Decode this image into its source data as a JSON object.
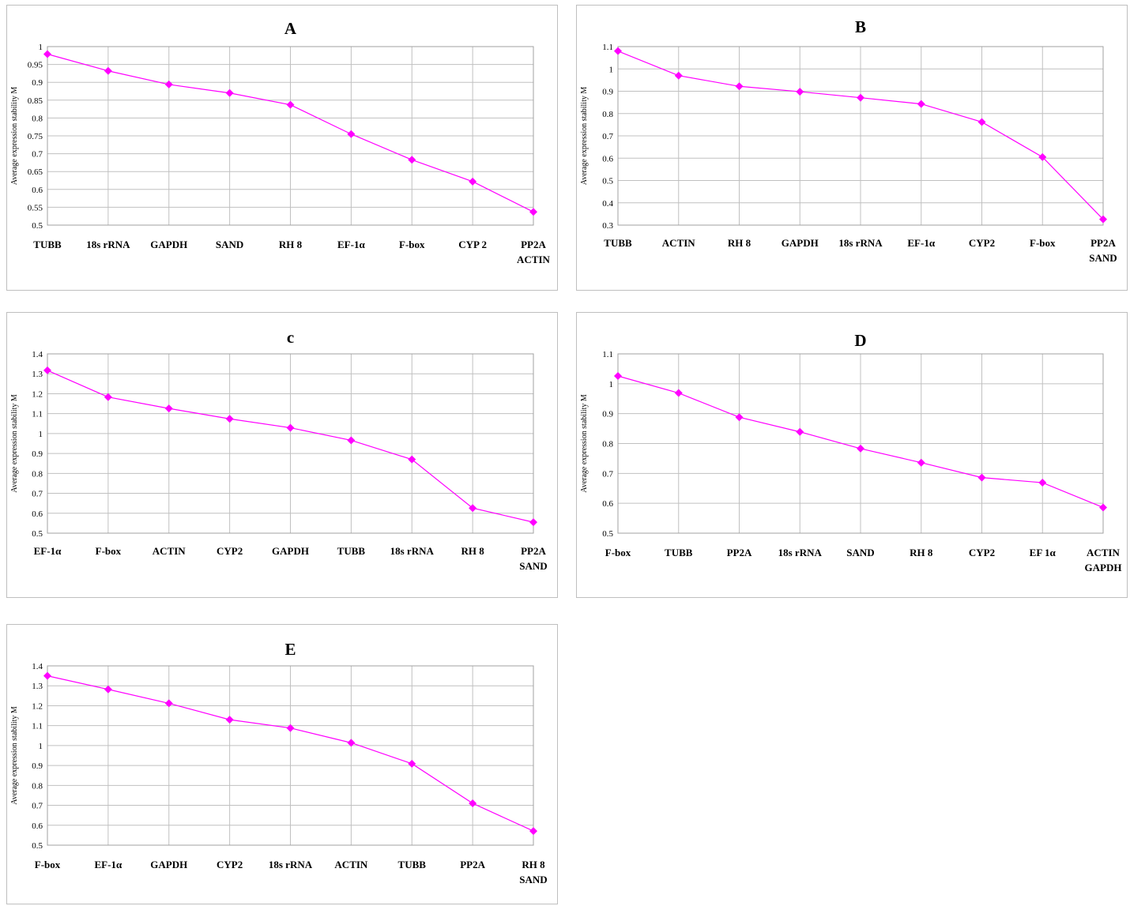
{
  "chart_data": [
    {
      "type": "line",
      "title": "A",
      "ylabel": "Average expression stability M",
      "xlabel": "",
      "categories": [
        "TUBB",
        "18s rRNA",
        "GAPDH",
        "SAND",
        "RH 8",
        "EF-1α",
        "F-box",
        "CYP 2",
        "PP2A\nACTIN"
      ],
      "values": [
        0.979,
        0.932,
        0.894,
        0.87,
        0.837,
        0.755,
        0.683,
        0.622,
        0.537
      ],
      "ylim": [
        0.5,
        1
      ],
      "yticks": [
        "0.5",
        "0.55",
        "0.6",
        "0.65",
        "0.7",
        "0.75",
        "0.8",
        "0.85",
        "0.9",
        "0.95",
        "1"
      ],
      "grid": true,
      "legend": "none",
      "color": "#ff00ff"
    },
    {
      "type": "line",
      "title": "B",
      "ylabel": "Average expression stability M",
      "xlabel": "",
      "categories": [
        "TUBB",
        "ACTIN",
        "RH 8",
        "GAPDH",
        "18s rRNA",
        "EF-1α",
        "CYP2",
        "F-box",
        "PP2A\nSAND"
      ],
      "values": [
        1.08,
        0.97,
        0.922,
        0.898,
        0.871,
        0.843,
        0.762,
        0.605,
        0.326
      ],
      "ylim": [
        0.3,
        1.1
      ],
      "yticks": [
        "0.3",
        "0.4",
        "0.5",
        "0.6",
        "0.7",
        "0.8",
        "0.9",
        "1",
        "1.1"
      ],
      "grid": true,
      "legend": "none",
      "color": "#ff00ff"
    },
    {
      "type": "line",
      "title": "c",
      "ylabel": "Average expression stability M",
      "xlabel": "",
      "categories": [
        "EF-1α",
        "F-box",
        "ACTIN",
        "CYP2",
        "GAPDH",
        "TUBB",
        "18s rRNA",
        "RH 8",
        "PP2A\nSAND"
      ],
      "values": [
        1.317,
        1.183,
        1.126,
        1.074,
        1.029,
        0.966,
        0.87,
        0.626,
        0.555
      ],
      "ylim": [
        0.5,
        1.4
      ],
      "yticks": [
        "0.5",
        "0.6",
        "0.7",
        "0.8",
        "0.9",
        "1",
        "1.1",
        "1.2",
        "1.3",
        "1.4"
      ],
      "grid": true,
      "legend": "none",
      "color": "#ff00ff"
    },
    {
      "type": "line",
      "title": "D",
      "ylabel": "Average expression stability M",
      "xlabel": "",
      "categories": [
        "F-box",
        "TUBB",
        "PP2A",
        "18s rRNA",
        "SAND",
        "RH 8",
        "CYP2",
        "EF 1α",
        "ACTIN\nGAPDH"
      ],
      "values": [
        1.026,
        0.969,
        0.888,
        0.839,
        0.783,
        0.736,
        0.686,
        0.669,
        0.586
      ],
      "ylim": [
        0.5,
        1.1
      ],
      "yticks": [
        "0.5",
        "0.6",
        "0.7",
        "0.8",
        "0.9",
        "1",
        "1.1"
      ],
      "grid": true,
      "legend": "none",
      "color": "#ff00ff"
    },
    {
      "type": "line",
      "title": "E",
      "ylabel": "Average expression stability M",
      "xlabel": "",
      "categories": [
        "F-box",
        "EF-1α",
        "GAPDH",
        "CYP2",
        "18s rRNA",
        "ACTIN",
        "TUBB",
        "PP2A",
        "RH 8\nSAND"
      ],
      "values": [
        1.35,
        1.282,
        1.212,
        1.13,
        1.088,
        1.014,
        0.909,
        0.71,
        0.571
      ],
      "ylim": [
        0.5,
        1.4
      ],
      "yticks": [
        "0.5",
        "0.6",
        "0.7",
        "0.8",
        "0.9",
        "1",
        "1.1",
        "1.2",
        "1.3",
        "1.4"
      ],
      "grid": true,
      "legend": "none",
      "color": "#ff00ff"
    }
  ]
}
